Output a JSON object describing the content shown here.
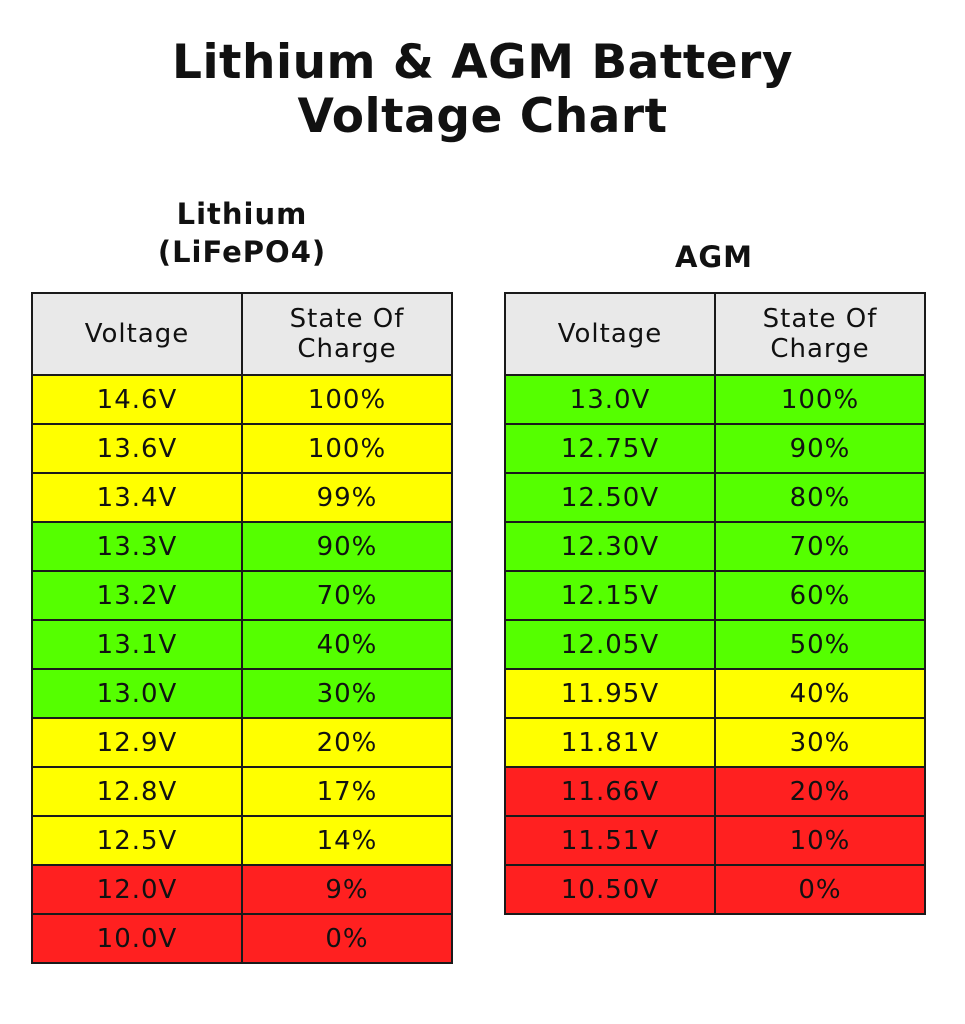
{
  "title_line1": "Lithium & AGM Battery",
  "title_line2": "Voltage Chart",
  "colors": {
    "yellow": "#ffff00",
    "green": "#55ff00",
    "red": "#ff2020",
    "header": "#e9e9e9"
  },
  "chart_data": [
    {
      "type": "table",
      "title_line1": "Lithium",
      "title_line2": "(LiFePO4)",
      "columns": [
        "Voltage",
        "State Of Charge"
      ],
      "rows": [
        {
          "voltage": "14.6V",
          "soc": "100%",
          "color": "yellow"
        },
        {
          "voltage": "13.6V",
          "soc": "100%",
          "color": "yellow"
        },
        {
          "voltage": "13.4V",
          "soc": "99%",
          "color": "yellow"
        },
        {
          "voltage": "13.3V",
          "soc": "90%",
          "color": "green"
        },
        {
          "voltage": "13.2V",
          "soc": "70%",
          "color": "green"
        },
        {
          "voltage": "13.1V",
          "soc": "40%",
          "color": "green"
        },
        {
          "voltage": "13.0V",
          "soc": "30%",
          "color": "green"
        },
        {
          "voltage": "12.9V",
          "soc": "20%",
          "color": "yellow"
        },
        {
          "voltage": "12.8V",
          "soc": "17%",
          "color": "yellow"
        },
        {
          "voltage": "12.5V",
          "soc": "14%",
          "color": "yellow"
        },
        {
          "voltage": "12.0V",
          "soc": "9%",
          "color": "red"
        },
        {
          "voltage": "10.0V",
          "soc": "0%",
          "color": "red"
        }
      ]
    },
    {
      "type": "table",
      "title": "AGM",
      "columns": [
        "Voltage",
        "State Of Charge"
      ],
      "rows": [
        {
          "voltage": "13.0V",
          "soc": "100%",
          "color": "green"
        },
        {
          "voltage": "12.75V",
          "soc": "90%",
          "color": "green"
        },
        {
          "voltage": "12.50V",
          "soc": "80%",
          "color": "green"
        },
        {
          "voltage": "12.30V",
          "soc": "70%",
          "color": "green"
        },
        {
          "voltage": "12.15V",
          "soc": "60%",
          "color": "green"
        },
        {
          "voltage": "12.05V",
          "soc": "50%",
          "color": "green"
        },
        {
          "voltage": "11.95V",
          "soc": "40%",
          "color": "yellow"
        },
        {
          "voltage": "11.81V",
          "soc": "30%",
          "color": "yellow"
        },
        {
          "voltage": "11.66V",
          "soc": "20%",
          "color": "red"
        },
        {
          "voltage": "11.51V",
          "soc": "10%",
          "color": "red"
        },
        {
          "voltage": "10.50V",
          "soc": "0%",
          "color": "red"
        }
      ]
    }
  ]
}
